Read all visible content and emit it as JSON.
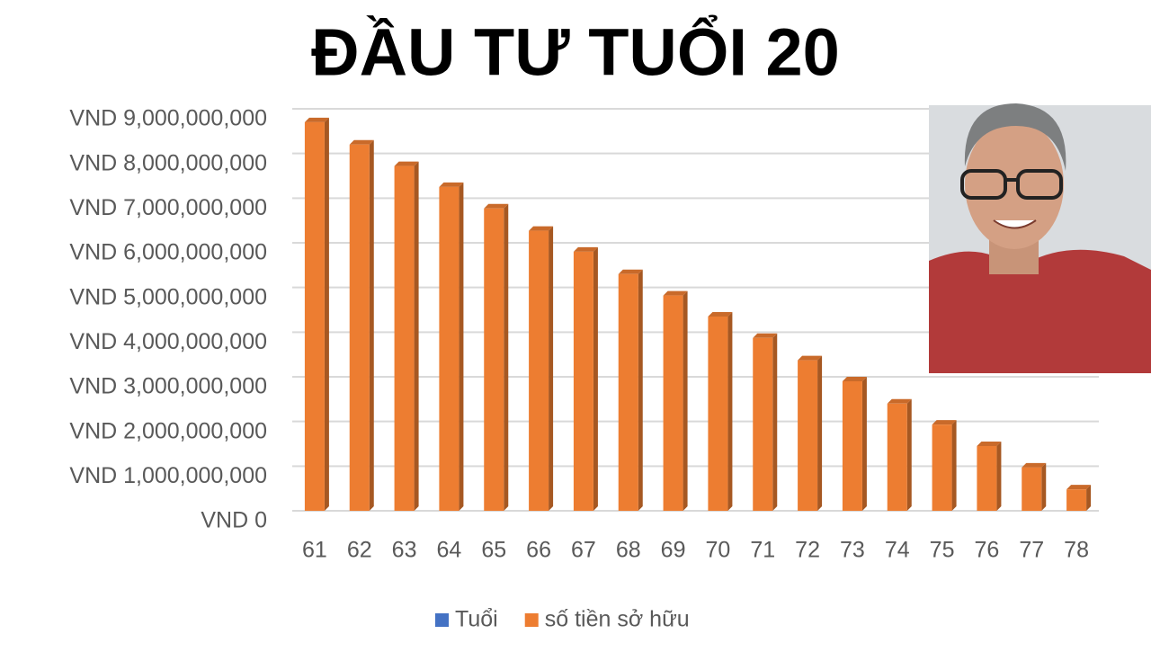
{
  "chart_data": {
    "type": "bar",
    "title": "ĐẦU TƯ TUỔI 20",
    "categories": [
      "61",
      "62",
      "63",
      "64",
      "65",
      "66",
      "67",
      "68",
      "69",
      "70",
      "71",
      "72",
      "73",
      "74",
      "75",
      "76",
      "77",
      "78"
    ],
    "series": [
      {
        "name": "Tuổi",
        "color": "#4472c4",
        "values": [
          null,
          null,
          null,
          null,
          null,
          null,
          null,
          null,
          null,
          null,
          null,
          null,
          null,
          null,
          null,
          null,
          null,
          null
        ]
      },
      {
        "name": "số tiền sở hữu",
        "color": "#ed7d31",
        "values": [
          8700000000,
          8200000000,
          7720000000,
          7250000000,
          6770000000,
          6270000000,
          5800000000,
          5300000000,
          4820000000,
          4350000000,
          3870000000,
          3370000000,
          2900000000,
          2400000000,
          1930000000,
          1450000000,
          970000000,
          480000000
        ]
      }
    ],
    "ylim": [
      0,
      9000000000
    ],
    "yticks": [
      {
        "value": 0,
        "label": "VND 0"
      },
      {
        "value": 1000000000,
        "label": "VND 1,000,000,000"
      },
      {
        "value": 2000000000,
        "label": "VND 2,000,000,000"
      },
      {
        "value": 3000000000,
        "label": "VND 3,000,000,000"
      },
      {
        "value": 4000000000,
        "label": "VND 4,000,000,000"
      },
      {
        "value": 5000000000,
        "label": "VND 5,000,000,000"
      },
      {
        "value": 6000000000,
        "label": "VND 6,000,000,000"
      },
      {
        "value": 7000000000,
        "label": "VND 7,000,000,000"
      },
      {
        "value": 8000000000,
        "label": "VND 8,000,000,000"
      },
      {
        "value": 9000000000,
        "label": "VND 9,000,000,000"
      }
    ],
    "grid": true
  }
}
